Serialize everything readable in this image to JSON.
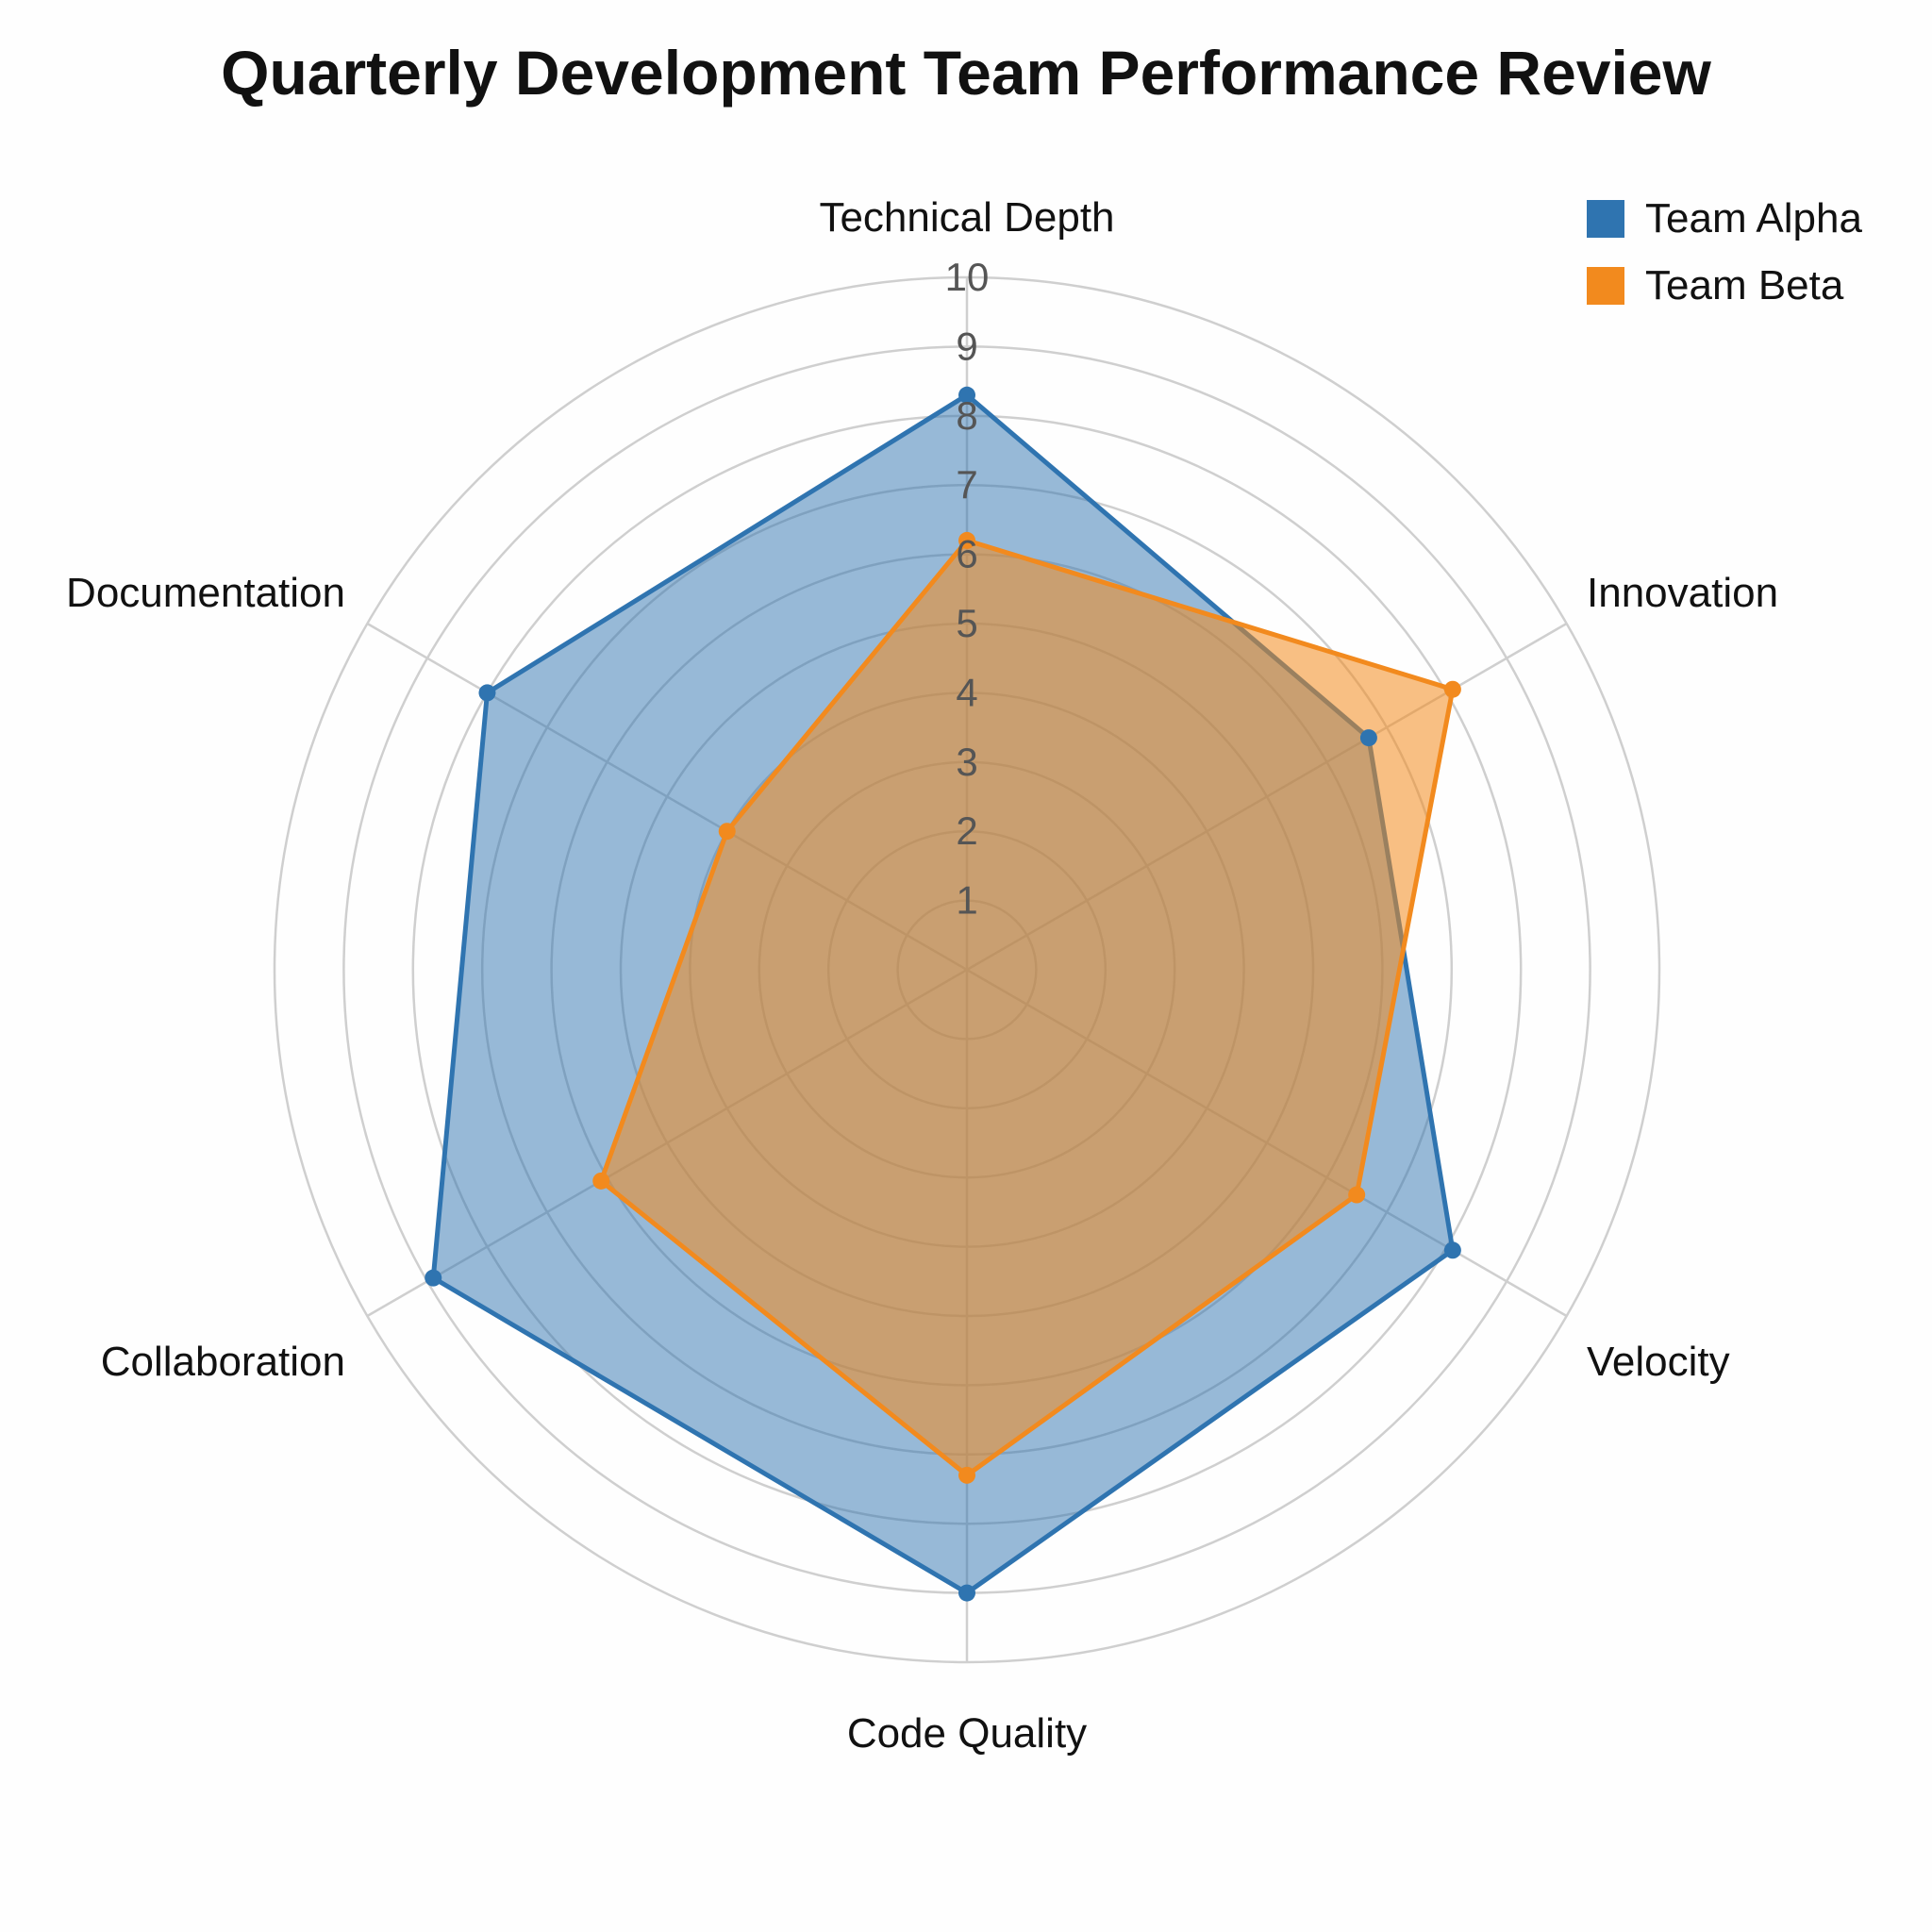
{
  "chart_data": {
    "type": "radar",
    "title": "Quarterly Development Team Performance Review",
    "categories": [
      "Technical Depth",
      "Innovation",
      "Velocity",
      "Code Quality",
      "Collaboration",
      "Documentation"
    ],
    "rlim": [
      0,
      10
    ],
    "ticks": [
      "1",
      "2",
      "3",
      "4",
      "5",
      "6",
      "7",
      "8",
      "9",
      "10"
    ],
    "grid": true,
    "legend_position": "top-right",
    "series": [
      {
        "name": "Team Alpha",
        "color": "#2f74b0",
        "values": [
          8.3,
          6.7,
          8.1,
          9.0,
          8.9,
          8.0
        ]
      },
      {
        "name": "Team Beta",
        "color": "#f28a1e",
        "values": [
          6.2,
          8.1,
          6.5,
          7.3,
          6.1,
          4.0
        ]
      }
    ]
  }
}
